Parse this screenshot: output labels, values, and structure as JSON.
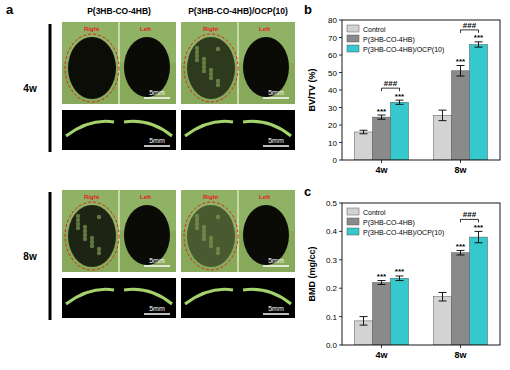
{
  "panel_labels": [
    "a",
    "b",
    "c"
  ],
  "panel_a": {
    "columns": [
      "P(3HB-CO-4HB)",
      "P(3HB-CO-4HB)/OCP(10)"
    ],
    "rows": [
      "4w",
      "8w"
    ],
    "sides": [
      "Right",
      "Left"
    ],
    "scale_bar": "5mm"
  },
  "chart_data": [
    {
      "type": "bar",
      "y_label": "BV/TV (%)",
      "categories": [
        "4w",
        "8w"
      ],
      "series": [
        {
          "name": "Control",
          "color": "#d3d3d3",
          "values": [
            16,
            25.5
          ],
          "errors": [
            1,
            3
          ]
        },
        {
          "name": "P(3HB-CO-4HB)",
          "color": "#8a8a8a",
          "values": [
            24.5,
            51
          ],
          "errors": [
            1.2,
            3
          ]
        },
        {
          "name": "P(3HB-CO-4HB)/OCP(10)",
          "color": "#35c8cc",
          "values": [
            33,
            66
          ],
          "errors": [
            1.2,
            1.5
          ]
        }
      ],
      "ylim": [
        0,
        80
      ],
      "yticks": [
        0,
        10,
        20,
        30,
        40,
        50,
        60,
        70,
        80
      ],
      "legend": "upper left",
      "grid": false,
      "annotations": [
        {
          "text": "***",
          "category": 0,
          "series": [
            1
          ]
        },
        {
          "text": "***",
          "category": 0,
          "series": [
            2
          ]
        },
        {
          "text": "###",
          "category": 0,
          "series": [
            1,
            2
          ]
        },
        {
          "text": "***",
          "category": 1,
          "series": [
            1
          ]
        },
        {
          "text": "***",
          "category": 1,
          "series": [
            2
          ]
        },
        {
          "text": "###",
          "category": 1,
          "series": [
            1,
            2
          ]
        }
      ]
    },
    {
      "type": "bar",
      "y_label": "BMD (mg/cc)",
      "categories": [
        "4w",
        "8w"
      ],
      "series": [
        {
          "name": "Control",
          "color": "#d3d3d3",
          "values": [
            0.085,
            0.17
          ],
          "errors": [
            0.015,
            0.015
          ]
        },
        {
          "name": "P(3HB-CO-4HB)",
          "color": "#8a8a8a",
          "values": [
            0.22,
            0.325
          ],
          "errors": [
            0.007,
            0.008
          ]
        },
        {
          "name": "P(3HB-CO-4HB)/OCP(10)",
          "color": "#35c8cc",
          "values": [
            0.235,
            0.38
          ],
          "errors": [
            0.008,
            0.02
          ]
        }
      ],
      "ylim": [
        0,
        0.5
      ],
      "yticks": [
        {
          "value": 0,
          "label": "0.0"
        },
        0.1,
        0.2,
        0.3,
        0.4,
        0.5
      ],
      "legend": "upper left",
      "grid": false,
      "annotations": [
        {
          "text": "***",
          "category": 0,
          "series": [
            1
          ]
        },
        {
          "text": "***",
          "category": 0,
          "series": [
            2
          ]
        },
        {
          "text": "***",
          "category": 1,
          "series": [
            1
          ]
        },
        {
          "text": "***",
          "category": 1,
          "series": [
            2
          ]
        },
        {
          "text": "###",
          "category": 1,
          "series": [
            1,
            2
          ]
        }
      ]
    }
  ]
}
